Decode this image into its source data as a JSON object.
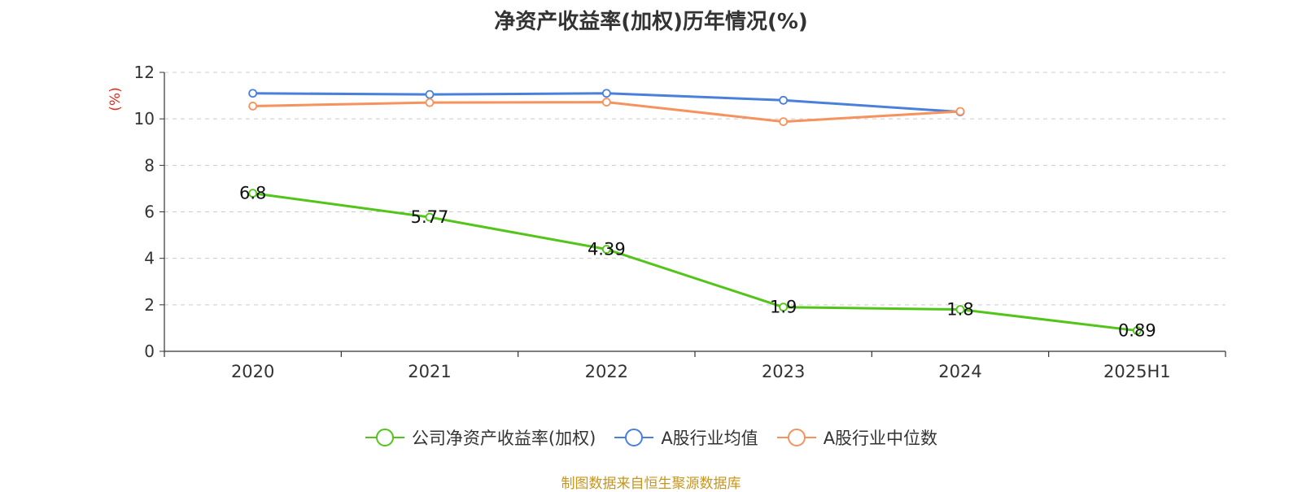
{
  "chart_data": {
    "type": "line",
    "title": "净资产收益率(加权)历年情况(%)",
    "ylabel": "(%)",
    "xlabel": "",
    "categories": [
      "2020",
      "2021",
      "2022",
      "2023",
      "2024",
      "2025H1"
    ],
    "ylim": [
      0,
      12
    ],
    "yticks": [
      0,
      2,
      4,
      6,
      8,
      10,
      12
    ],
    "grid": true,
    "legend_position": "bottom",
    "series": [
      {
        "name": "公司净资产收益率(加权)",
        "color": "#52c41a",
        "values": [
          6.8,
          5.77,
          4.39,
          1.9,
          1.8,
          0.89
        ],
        "labels": [
          "6.8",
          "5.77",
          "4.39",
          "1.9",
          "1.8",
          "0.89"
        ]
      },
      {
        "name": "A股行业均值",
        "color": "#4a7fdb",
        "values": [
          11.1,
          11.05,
          11.1,
          10.8,
          10.3,
          null
        ]
      },
      {
        "name": "A股行业中位数",
        "color": "#f5925e",
        "values": [
          10.55,
          10.7,
          10.72,
          9.88,
          10.32,
          null
        ]
      }
    ],
    "source": "制图数据来自恒生聚源数据库"
  }
}
